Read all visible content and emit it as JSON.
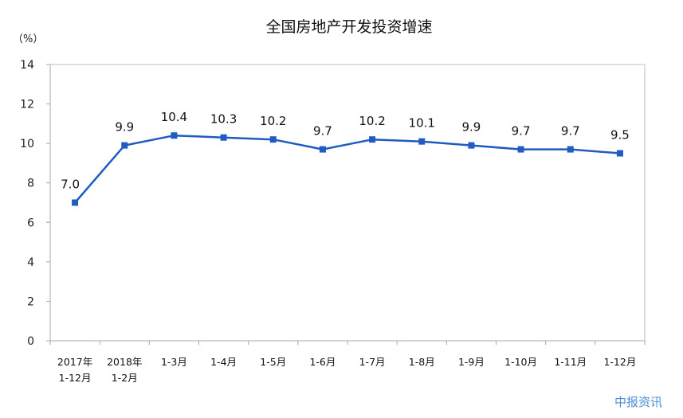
{
  "watermark": "中报资讯",
  "chart_data": {
    "type": "line",
    "title": "全国房地产开发投资增速",
    "unit": "（%）",
    "categories": [
      [
        "2017年",
        "1-12月"
      ],
      [
        "2018年",
        "1-2月"
      ],
      [
        "1-3月"
      ],
      [
        "1-4月"
      ],
      [
        "1-5月"
      ],
      [
        "1-6月"
      ],
      [
        "1-7月"
      ],
      [
        "1-8月"
      ],
      [
        "1-9月"
      ],
      [
        "1-10月"
      ],
      [
        "1-11月"
      ],
      [
        "1-12月"
      ]
    ],
    "values": [
      7.0,
      9.9,
      10.4,
      10.3,
      10.2,
      9.7,
      10.2,
      10.1,
      9.9,
      9.7,
      9.7,
      9.5
    ],
    "value_labels": [
      "7.0",
      "9.9",
      "10.4",
      "10.3",
      "10.2",
      "9.7",
      "10.2",
      "10.1",
      "9.9",
      "9.7",
      "9.7",
      "9.5"
    ],
    "ylim": [
      0,
      14
    ],
    "yticks": [
      0,
      2,
      4,
      6,
      8,
      10,
      12,
      14
    ],
    "grid": false,
    "legend": "none",
    "line_color": "#1f5bc1"
  }
}
